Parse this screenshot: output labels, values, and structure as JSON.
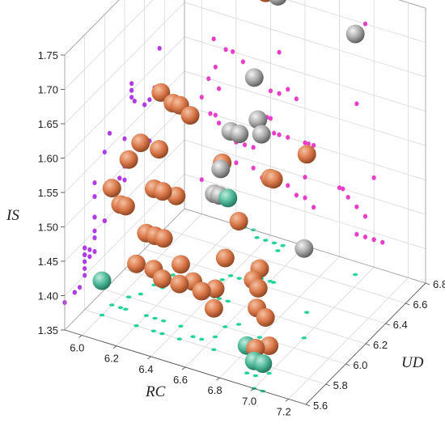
{
  "chart_data": {
    "type": "scatter3d",
    "axes": {
      "x": {
        "label": "RC",
        "range": [
          5.9,
          7.3
        ],
        "ticks": [
          6.0,
          6.2,
          6.4,
          6.6,
          6.8,
          7.0,
          7.2
        ]
      },
      "y": {
        "label": "UD",
        "range": [
          5.6,
          6.8
        ],
        "ticks": [
          5.6,
          5.8,
          6.0,
          6.2,
          6.4,
          6.6,
          6.8
        ]
      },
      "z": {
        "label": "IS",
        "range": [
          1.35,
          1.75
        ],
        "ticks": [
          1.35,
          1.4,
          1.45,
          1.5,
          1.55,
          1.6,
          1.65,
          1.7,
          1.75
        ]
      }
    },
    "grid": true,
    "colors": {
      "orange": "#d9784a",
      "gray": "#a8a8a8",
      "teal": "#4fb89a",
      "proj_rc_is": "#b13be6",
      "proj_ud_is": "#e83fc8",
      "proj_rc_ud": "#22d49a"
    },
    "series": [
      {
        "color": "orange",
        "points": [
          [
            6.35,
            6.75,
            1.71
          ],
          [
            6.4,
            6.75,
            1.71
          ],
          [
            6.07,
            6.27,
            1.61
          ],
          [
            6.14,
            6.27,
            1.6
          ],
          [
            6.18,
            6.27,
            1.6
          ],
          [
            6.24,
            6.27,
            1.59
          ],
          [
            6.08,
            6.05,
            1.57
          ],
          [
            6.04,
            6.0,
            1.55
          ],
          [
            6.1,
            6.2,
            1.54
          ],
          [
            6.6,
            6.45,
            1.5
          ],
          [
            6.62,
            6.45,
            1.5
          ],
          [
            6.38,
            6.35,
            1.52
          ],
          [
            6.65,
            6.05,
            1.5
          ],
          [
            6.1,
            6.15,
            1.49
          ],
          [
            6.15,
            6.15,
            1.49
          ],
          [
            6.2,
            6.2,
            1.48
          ],
          [
            6.0,
            5.9,
            1.52
          ],
          [
            6.05,
            5.9,
            1.5
          ],
          [
            6.08,
            5.9,
            1.5
          ],
          [
            6.2,
            5.9,
            1.47
          ],
          [
            6.25,
            5.9,
            1.47
          ],
          [
            6.3,
            5.9,
            1.47
          ],
          [
            6.9,
            6.3,
            1.58
          ],
          [
            6.4,
            5.9,
            1.44
          ],
          [
            6.6,
            6.0,
            1.45
          ],
          [
            6.8,
            6.0,
            1.45
          ],
          [
            6.82,
            5.9,
            1.45
          ],
          [
            6.85,
            5.9,
            1.44
          ],
          [
            6.9,
            5.8,
            1.43
          ],
          [
            6.95,
            5.8,
            1.42
          ],
          [
            6.3,
            5.8,
            1.44
          ],
          [
            6.35,
            5.8,
            1.43
          ],
          [
            6.45,
            5.8,
            1.43
          ],
          [
            6.5,
            5.85,
            1.43
          ],
          [
            6.55,
            5.85,
            1.42
          ],
          [
            6.6,
            5.9,
            1.42
          ],
          [
            6.65,
            5.8,
            1.41
          ],
          [
            6.2,
            5.8,
            1.44
          ],
          [
            6.95,
            5.7,
            1.39
          ],
          [
            7.0,
            5.75,
            1.39
          ]
        ]
      },
      {
        "color": "gray",
        "points": [
          [
            6.25,
            6.8,
            1.78
          ],
          [
            6.3,
            6.8,
            1.77
          ],
          [
            6.45,
            6.75,
            1.75
          ],
          [
            6.5,
            6.75,
            1.74
          ],
          [
            6.5,
            6.7,
            1.72
          ],
          [
            6.95,
            6.7,
            1.7
          ],
          [
            6.45,
            6.55,
            1.62
          ],
          [
            6.4,
            6.4,
            1.56
          ],
          [
            6.45,
            6.4,
            1.56
          ],
          [
            6.5,
            6.5,
            1.57
          ],
          [
            6.55,
            6.45,
            1.56
          ],
          [
            6.4,
            6.3,
            1.52
          ],
          [
            6.42,
            6.2,
            1.5
          ],
          [
            6.45,
            6.2,
            1.5
          ],
          [
            7.0,
            6.1,
            1.48
          ]
        ]
      },
      {
        "color": "teal",
        "points": [
          [
            6.5,
            6.2,
            1.5
          ],
          [
            6.0,
            5.8,
            1.4
          ],
          [
            6.9,
            5.7,
            1.39
          ],
          [
            7.0,
            5.6,
            1.39
          ],
          [
            7.05,
            5.6,
            1.39
          ]
        ]
      }
    ]
  }
}
